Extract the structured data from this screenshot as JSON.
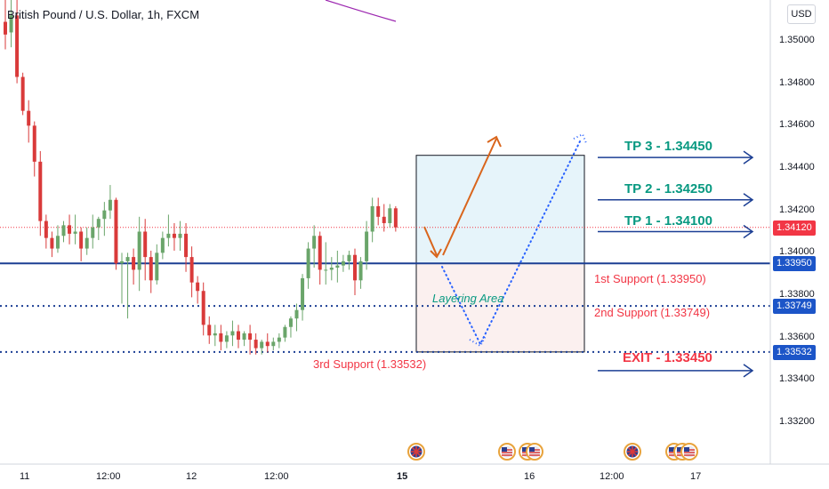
{
  "header": {
    "title": "British Pound / U.S. Dollar, 1h, FXCM",
    "currency_button": "USD"
  },
  "colors": {
    "bull": "#6aa56a",
    "bear": "#d93a3a",
    "blue_level": "#1c3f94",
    "badge_blue": "#1c55c8",
    "badge_red": "#f23645",
    "tp_teal": "#089981",
    "exit_red": "#f23645",
    "forecast_orange": "#d9651c",
    "ma_purple": "#9c27b0"
  },
  "price_axis": {
    "ticks": [
      "1.35000",
      "1.34800",
      "1.34600",
      "1.34400",
      "1.34200",
      "1.34000",
      "1.33800",
      "1.33600",
      "1.33400",
      "1.33200"
    ],
    "badges": [
      {
        "value": "1.34120",
        "style": "red"
      },
      {
        "value": "1.33950",
        "style": "blue"
      },
      {
        "value": "1.33749",
        "style": "blue"
      },
      {
        "value": "1.33532",
        "style": "blue"
      }
    ]
  },
  "time_axis": {
    "labels": [
      {
        "text": "11",
        "bold": false
      },
      {
        "text": "12:00",
        "bold": false
      },
      {
        "text": "12",
        "bold": false
      },
      {
        "text": "12:00",
        "bold": false
      },
      {
        "text": "15",
        "bold": true
      },
      {
        "text": "16",
        "bold": false
      },
      {
        "text": "12:00",
        "bold": false
      },
      {
        "text": "17",
        "bold": false
      }
    ]
  },
  "annotations": {
    "tp3": "TP 3 - 1.34450",
    "tp2": "TP 2 - 1.34250",
    "tp1": "TP 1 - 1.34100",
    "support1": "1st Support (1.33950)",
    "support2": "2nd Support (1.33749)",
    "support3": "3rd Support (1.33532)",
    "exit": "EXIT - 1.33450",
    "layering": "Layering Area"
  },
  "event_icons": [
    "uk-flag-icon",
    "us-flag-icon",
    "us-flag-icon",
    "us-flag-icon",
    "uk-flag-icon",
    "us-flag-icon",
    "us-flag-icon",
    "us-flag-icon"
  ],
  "chart_data": {
    "type": "candlestick",
    "title": "British Pound / U.S. Dollar, 1h, FXCM",
    "ylim": [
      1.3305,
      1.3515
    ],
    "grid": false,
    "current_price": 1.3412,
    "levels": {
      "tp3": 1.3445,
      "tp2": 1.3425,
      "tp1": 1.341,
      "support1": 1.3395,
      "support2": 1.33749,
      "support3": 1.33532,
      "exit": 1.3345
    },
    "layering_area": {
      "from": 1.33532,
      "to": 1.3395
    },
    "target_area": {
      "from": 1.3395,
      "to": 1.3446
    },
    "candles": [
      {
        "o": 1.3509,
        "h": 1.3522,
        "c": 1.3503,
        "l": 1.3496
      },
      {
        "o": 1.3504,
        "h": 1.3522,
        "c": 1.3512,
        "l": 1.3497
      },
      {
        "o": 1.3512,
        "h": 1.3523,
        "c": 1.3483,
        "l": 1.348
      },
      {
        "o": 1.3483,
        "h": 1.3485,
        "c": 1.3467,
        "l": 1.3465
      },
      {
        "o": 1.3467,
        "h": 1.3472,
        "c": 1.346,
        "l": 1.3452
      },
      {
        "o": 1.346,
        "h": 1.3462,
        "c": 1.3443,
        "l": 1.3436
      },
      {
        "o": 1.3443,
        "h": 1.3448,
        "c": 1.3415,
        "l": 1.3408
      },
      {
        "o": 1.3415,
        "h": 1.3418,
        "c": 1.3407,
        "l": 1.3402
      },
      {
        "o": 1.3407,
        "h": 1.341,
        "c": 1.3402,
        "l": 1.3398
      },
      {
        "o": 1.3402,
        "h": 1.3413,
        "c": 1.3408,
        "l": 1.34
      },
      {
        "o": 1.3408,
        "h": 1.3415,
        "c": 1.3413,
        "l": 1.3405
      },
      {
        "o": 1.3413,
        "h": 1.3418,
        "c": 1.3409,
        "l": 1.3404
      },
      {
        "o": 1.3409,
        "h": 1.3418,
        "c": 1.341,
        "l": 1.3404
      },
      {
        "o": 1.341,
        "h": 1.3412,
        "c": 1.3402,
        "l": 1.3396
      },
      {
        "o": 1.3402,
        "h": 1.3412,
        "c": 1.3407,
        "l": 1.3399
      },
      {
        "o": 1.3407,
        "h": 1.3418,
        "c": 1.3412,
        "l": 1.3402
      },
      {
        "o": 1.3412,
        "h": 1.3417,
        "c": 1.3416,
        "l": 1.3406
      },
      {
        "o": 1.3416,
        "h": 1.3424,
        "c": 1.342,
        "l": 1.3408
      },
      {
        "o": 1.342,
        "h": 1.3432,
        "c": 1.3425,
        "l": 1.3416
      },
      {
        "o": 1.3425,
        "h": 1.3426,
        "c": 1.3395,
        "l": 1.3392
      },
      {
        "o": 1.3395,
        "h": 1.34,
        "c": 1.3396,
        "l": 1.3376
      },
      {
        "o": 1.3396,
        "h": 1.34,
        "c": 1.3398,
        "l": 1.3369
      },
      {
        "o": 1.3398,
        "h": 1.3402,
        "c": 1.3392,
        "l": 1.3385
      },
      {
        "o": 1.3392,
        "h": 1.3417,
        "c": 1.341,
        "l": 1.3382
      },
      {
        "o": 1.341,
        "h": 1.3416,
        "c": 1.3398,
        "l": 1.3387
      },
      {
        "o": 1.3398,
        "h": 1.3401,
        "c": 1.3387,
        "l": 1.3381
      },
      {
        "o": 1.3387,
        "h": 1.3404,
        "c": 1.34,
        "l": 1.3385
      },
      {
        "o": 1.34,
        "h": 1.341,
        "c": 1.3407,
        "l": 1.3397
      },
      {
        "o": 1.3407,
        "h": 1.3418,
        "c": 1.3409,
        "l": 1.3403
      },
      {
        "o": 1.3409,
        "h": 1.3414,
        "c": 1.3407,
        "l": 1.3401
      },
      {
        "o": 1.3407,
        "h": 1.3415,
        "c": 1.3409,
        "l": 1.3401
      },
      {
        "o": 1.3409,
        "h": 1.3414,
        "c": 1.3398,
        "l": 1.3391
      },
      {
        "o": 1.3398,
        "h": 1.3403,
        "c": 1.3386,
        "l": 1.3379
      },
      {
        "o": 1.3386,
        "h": 1.3389,
        "c": 1.3382,
        "l": 1.3376
      },
      {
        "o": 1.3382,
        "h": 1.3386,
        "c": 1.3366,
        "l": 1.3361
      },
      {
        "o": 1.3366,
        "h": 1.337,
        "c": 1.3361,
        "l": 1.3357
      },
      {
        "o": 1.3361,
        "h": 1.3366,
        "c": 1.3362,
        "l": 1.3356
      },
      {
        "o": 1.3362,
        "h": 1.3366,
        "c": 1.3358,
        "l": 1.3354
      },
      {
        "o": 1.3358,
        "h": 1.3363,
        "c": 1.3361,
        "l": 1.3355
      },
      {
        "o": 1.3361,
        "h": 1.3368,
        "c": 1.3363,
        "l": 1.3356
      },
      {
        "o": 1.3363,
        "h": 1.3366,
        "c": 1.3359,
        "l": 1.3355
      },
      {
        "o": 1.3359,
        "h": 1.3363,
        "c": 1.3362,
        "l": 1.3356
      },
      {
        "o": 1.3362,
        "h": 1.3366,
        "c": 1.3359,
        "l": 1.3352
      },
      {
        "o": 1.3359,
        "h": 1.3362,
        "c": 1.3355,
        "l": 1.3352
      },
      {
        "o": 1.3355,
        "h": 1.3359,
        "c": 1.3358,
        "l": 1.3352
      },
      {
        "o": 1.3358,
        "h": 1.3362,
        "c": 1.3356,
        "l": 1.3353
      },
      {
        "o": 1.3356,
        "h": 1.336,
        "c": 1.3358,
        "l": 1.3354
      },
      {
        "o": 1.3358,
        "h": 1.3362,
        "c": 1.336,
        "l": 1.3355
      },
      {
        "o": 1.336,
        "h": 1.3366,
        "c": 1.3365,
        "l": 1.3358
      },
      {
        "o": 1.3365,
        "h": 1.337,
        "c": 1.3369,
        "l": 1.336
      },
      {
        "o": 1.3369,
        "h": 1.3376,
        "c": 1.3373,
        "l": 1.3363
      },
      {
        "o": 1.3373,
        "h": 1.339,
        "c": 1.3388,
        "l": 1.3368
      },
      {
        "o": 1.3388,
        "h": 1.3405,
        "c": 1.3402,
        "l": 1.3383
      },
      {
        "o": 1.3402,
        "h": 1.3413,
        "c": 1.3408,
        "l": 1.3393
      },
      {
        "o": 1.3408,
        "h": 1.341,
        "c": 1.3392,
        "l": 1.3385
      },
      {
        "o": 1.3392,
        "h": 1.3405,
        "c": 1.3392,
        "l": 1.3385
      },
      {
        "o": 1.3392,
        "h": 1.3398,
        "c": 1.3393,
        "l": 1.3387
      },
      {
        "o": 1.3393,
        "h": 1.3401,
        "c": 1.3394,
        "l": 1.3386
      },
      {
        "o": 1.3394,
        "h": 1.3399,
        "c": 1.3396,
        "l": 1.3391
      },
      {
        "o": 1.3396,
        "h": 1.3401,
        "c": 1.3399,
        "l": 1.3392
      },
      {
        "o": 1.3399,
        "h": 1.3402,
        "c": 1.3387,
        "l": 1.338
      },
      {
        "o": 1.3387,
        "h": 1.3398,
        "c": 1.3396,
        "l": 1.3383
      },
      {
        "o": 1.3396,
        "h": 1.3415,
        "c": 1.341,
        "l": 1.3392
      },
      {
        "o": 1.341,
        "h": 1.3426,
        "c": 1.3422,
        "l": 1.3405
      },
      {
        "o": 1.3422,
        "h": 1.3426,
        "c": 1.3417,
        "l": 1.3413
      },
      {
        "o": 1.3417,
        "h": 1.3423,
        "c": 1.3414,
        "l": 1.341
      },
      {
        "o": 1.3414,
        "h": 1.3423,
        "c": 1.3421,
        "l": 1.3412
      },
      {
        "o": 1.3421,
        "h": 1.3422,
        "c": 1.3412,
        "l": 1.341
      }
    ]
  }
}
